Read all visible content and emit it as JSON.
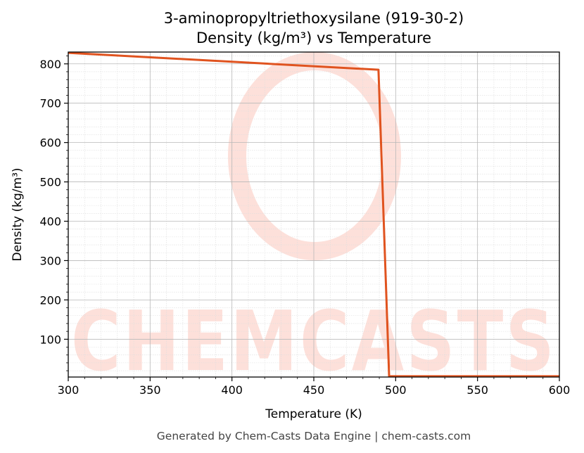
{
  "chart_data": {
    "type": "line",
    "title": [
      "3-aminopropyltriethoxysilane (919-30-2)",
      "Density (kg/m³) vs Temperature"
    ],
    "xlabel": "Temperature (K)",
    "ylabel": "Density (kg/m³)",
    "xlim": [
      300,
      600
    ],
    "ylim": [
      4,
      830
    ],
    "xticks": [
      300,
      350,
      400,
      450,
      500,
      550,
      600
    ],
    "yticks": [
      100,
      200,
      300,
      400,
      500,
      600,
      700,
      800
    ],
    "grid": true,
    "minor_grid": true,
    "series": [
      {
        "color": "#e0531f",
        "x": [
          300,
          489.5,
          496,
          600
        ],
        "y": [
          828,
          785,
          6,
          6
        ]
      }
    ]
  },
  "watermark": {
    "text": "CHEMCASTS",
    "color": "#fde0da"
  },
  "footer": "Generated by Chem-Casts Data Engine | chem-casts.com"
}
